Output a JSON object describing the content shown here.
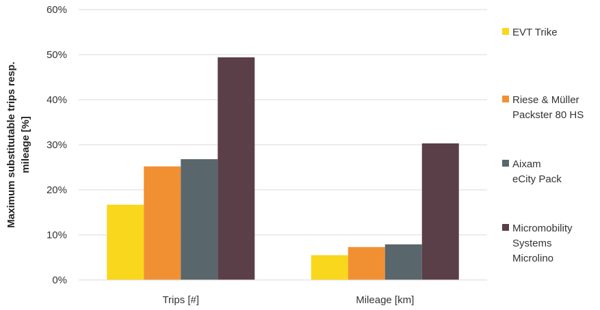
{
  "chart_data": {
    "type": "bar",
    "categories": [
      "Trips [#]",
      "Mileage [km]"
    ],
    "series": [
      {
        "name": "EVT Trike",
        "legend_lines": [
          "EVT Trike"
        ],
        "values": [
          16.7,
          5.5
        ],
        "color": "#f9d71c"
      },
      {
        "name": "Riese & Müller Packster 80 HS",
        "legend_lines": [
          "Riese & Müller",
          "Packster 80 HS"
        ],
        "values": [
          25.2,
          7.3
        ],
        "color": "#f19032"
      },
      {
        "name": "Aixam eCity Pack",
        "legend_lines": [
          "Aixam",
          "eCity Pack"
        ],
        "values": [
          26.8,
          7.9
        ],
        "color": "#59666b"
      },
      {
        "name": "Micromobility Systems Microlino",
        "legend_lines": [
          "Micromobility",
          "Systems",
          "Microlino"
        ],
        "values": [
          49.4,
          30.3
        ],
        "color": "#5a3e48"
      }
    ],
    "ylabel_lines": [
      "Maximum substitutable trips resp.",
      "mileage [%]"
    ],
    "ylim": [
      0,
      60
    ],
    "yticks": [
      "0%",
      "10%",
      "20%",
      "30%",
      "40%",
      "50%",
      "60%"
    ],
    "grid": true,
    "legend": "right"
  }
}
